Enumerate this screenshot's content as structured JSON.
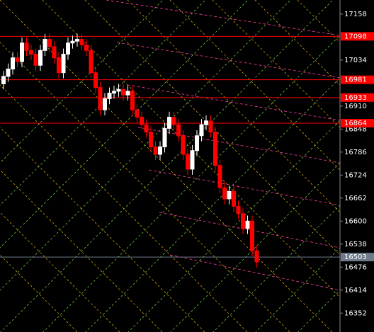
{
  "chart_data": {
    "type": "candlestick",
    "up_color": "#ffffff",
    "down_color": "#ff0000",
    "level_color": "#ff0000",
    "current_color": "#6e7b8b",
    "ylim": [
      16301,
      17196
    ],
    "yticks": [
      17158,
      17034,
      16910,
      16848,
      16786,
      16724,
      16662,
      16600,
      16538,
      16476,
      16414,
      16352
    ],
    "levels": [
      17098,
      16981,
      16933,
      16864
    ],
    "current": 16503,
    "open": [
      16970,
      16990,
      17010,
      17040,
      17030,
      17080,
      17060,
      17050,
      17020,
      17060,
      17090,
      17070,
      17040,
      17000,
      17050,
      17080,
      17085,
      17090,
      17075,
      17060,
      17000,
      16960,
      16900,
      16930,
      16945,
      16950,
      16955,
      16940,
      16950,
      16900,
      16880,
      16860,
      16840,
      16800,
      16780,
      16800,
      16850,
      16880,
      16860,
      16830,
      16780,
      16740,
      16790,
      16830,
      16860,
      16870,
      16840,
      16750,
      16690,
      16660,
      16680,
      16640,
      16620,
      16580,
      16600,
      16520
    ],
    "high": [
      17005,
      17025,
      17055,
      17055,
      17095,
      17095,
      17075,
      17065,
      17075,
      17105,
      17105,
      17085,
      17055,
      17065,
      17095,
      17100,
      17105,
      17105,
      17090,
      17075,
      17015,
      16975,
      16945,
      16960,
      16965,
      16970,
      16970,
      16965,
      16965,
      16915,
      16895,
      16875,
      16855,
      16815,
      16815,
      16865,
      16895,
      16895,
      16875,
      16845,
      16795,
      16805,
      16845,
      16875,
      16885,
      16885,
      16855,
      16765,
      16705,
      16695,
      16695,
      16655,
      16635,
      16615,
      16615,
      16535
    ],
    "low": [
      16955,
      16975,
      16995,
      17015,
      17015,
      17045,
      17035,
      17005,
      17005,
      17045,
      17055,
      17025,
      16985,
      16985,
      17035,
      17065,
      17070,
      17060,
      17045,
      16985,
      16945,
      16885,
      16885,
      16915,
      16930,
      16935,
      16925,
      16925,
      16885,
      16865,
      16845,
      16825,
      16785,
      16765,
      16765,
      16785,
      16835,
      16845,
      16815,
      16765,
      16725,
      16725,
      16775,
      16815,
      16845,
      16825,
      16735,
      16675,
      16645,
      16645,
      16625,
      16605,
      16565,
      16565,
      16505,
      16475
    ],
    "close": [
      16990,
      17010,
      17040,
      17030,
      17080,
      17060,
      17050,
      17020,
      17060,
      17090,
      17070,
      17040,
      17000,
      17050,
      17080,
      17085,
      17090,
      17075,
      17060,
      17000,
      16960,
      16900,
      16930,
      16945,
      16950,
      16955,
      16940,
      16950,
      16900,
      16880,
      16860,
      16840,
      16800,
      16780,
      16800,
      16850,
      16880,
      16860,
      16830,
      16780,
      16740,
      16790,
      16830,
      16860,
      16870,
      16840,
      16750,
      16690,
      16660,
      16680,
      16640,
      16620,
      16580,
      16600,
      16520,
      16490
    ]
  }
}
